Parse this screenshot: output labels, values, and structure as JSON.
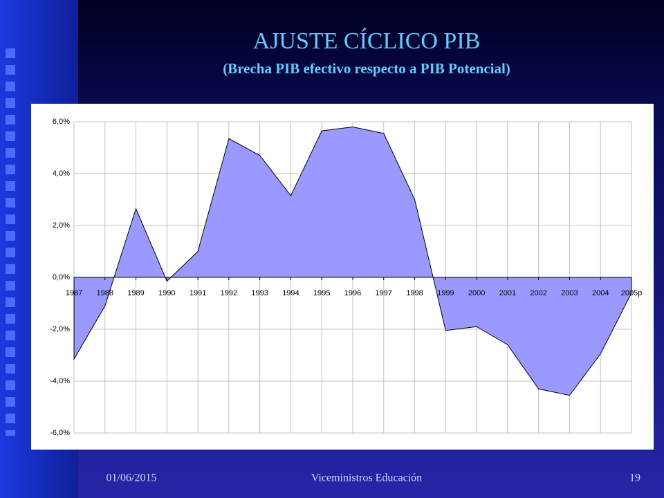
{
  "chart_data": {
    "type": "area",
    "title": "AJUSTE CÍCLICO PIB",
    "subtitle": "(Brecha PIB efectivo respecto a PIB Potencial)",
    "categories": [
      "1987",
      "1988",
      "1989",
      "1990",
      "1991",
      "1992",
      "1993",
      "1994",
      "1995",
      "1996",
      "1997",
      "1998",
      "1999",
      "2000",
      "2001",
      "2002",
      "2003",
      "2004",
      "2005p"
    ],
    "values": [
      -3.15,
      -1.1,
      2.65,
      -0.15,
      1.0,
      5.35,
      4.7,
      3.15,
      5.65,
      5.8,
      5.55,
      3.0,
      -2.05,
      -1.9,
      -2.6,
      -4.3,
      -4.55,
      -2.95,
      -0.6
    ],
    "color": "#9999ff",
    "ylim": [
      -6,
      6
    ],
    "yticks": [
      {
        "value": 6,
        "label": "6,0%"
      },
      {
        "value": 4,
        "label": "4,0%"
      },
      {
        "value": 2,
        "label": "2,0%"
      },
      {
        "value": 0,
        "label": "0,0%"
      },
      {
        "value": -2,
        "label": "-2,0%"
      },
      {
        "value": -4,
        "label": "-4,0%"
      },
      {
        "value": -6,
        "label": "-6,0%"
      }
    ],
    "grid": true
  },
  "footer": {
    "date": "01/06/2015",
    "text": "Viceministros Educación",
    "page": "19"
  }
}
